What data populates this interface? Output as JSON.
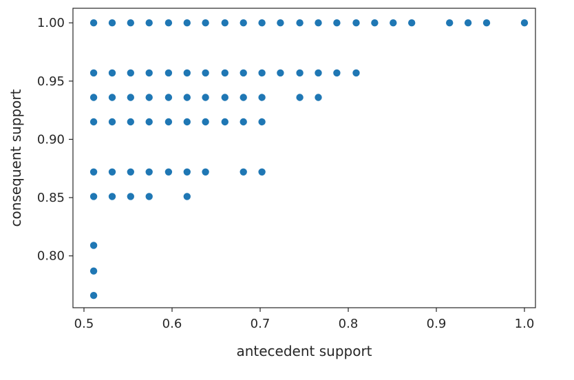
{
  "chart_data": {
    "type": "scatter",
    "title": "",
    "xlabel": "antecedent support",
    "ylabel": "consequent support",
    "xlim": [
      0.4875,
      1.0125
    ],
    "ylim": [
      0.7555,
      1.0125
    ],
    "xticks": [
      "0.5",
      "0.6",
      "0.7",
      "0.8",
      "0.9",
      "1.0"
    ],
    "yticks": [
      "0.80",
      "0.85",
      "0.90",
      "0.95",
      "1.00"
    ],
    "grid": false,
    "marker_color": "#1f77b4",
    "series": [
      {
        "points": [
          [
            0.511,
            1.0
          ],
          [
            0.532,
            1.0
          ],
          [
            0.553,
            1.0
          ],
          [
            0.574,
            1.0
          ],
          [
            0.596,
            1.0
          ],
          [
            0.617,
            1.0
          ],
          [
            0.638,
            1.0
          ],
          [
            0.66,
            1.0
          ],
          [
            0.681,
            1.0
          ],
          [
            0.702,
            1.0
          ],
          [
            0.723,
            1.0
          ],
          [
            0.745,
            1.0
          ],
          [
            0.766,
            1.0
          ],
          [
            0.787,
            1.0
          ],
          [
            0.809,
            1.0
          ],
          [
            0.83,
            1.0
          ],
          [
            0.851,
            1.0
          ],
          [
            0.872,
            1.0
          ],
          [
            0.915,
            1.0
          ],
          [
            0.936,
            1.0
          ],
          [
            0.957,
            1.0
          ],
          [
            1.0,
            1.0
          ],
          [
            0.511,
            0.957
          ],
          [
            0.532,
            0.957
          ],
          [
            0.553,
            0.957
          ],
          [
            0.574,
            0.957
          ],
          [
            0.596,
            0.957
          ],
          [
            0.617,
            0.957
          ],
          [
            0.638,
            0.957
          ],
          [
            0.66,
            0.957
          ],
          [
            0.681,
            0.957
          ],
          [
            0.702,
            0.957
          ],
          [
            0.723,
            0.957
          ],
          [
            0.745,
            0.957
          ],
          [
            0.766,
            0.957
          ],
          [
            0.787,
            0.957
          ],
          [
            0.809,
            0.957
          ],
          [
            0.511,
            0.936
          ],
          [
            0.532,
            0.936
          ],
          [
            0.553,
            0.936
          ],
          [
            0.574,
            0.936
          ],
          [
            0.596,
            0.936
          ],
          [
            0.617,
            0.936
          ],
          [
            0.638,
            0.936
          ],
          [
            0.66,
            0.936
          ],
          [
            0.681,
            0.936
          ],
          [
            0.702,
            0.936
          ],
          [
            0.745,
            0.936
          ],
          [
            0.766,
            0.936
          ],
          [
            0.511,
            0.915
          ],
          [
            0.532,
            0.915
          ],
          [
            0.553,
            0.915
          ],
          [
            0.574,
            0.915
          ],
          [
            0.596,
            0.915
          ],
          [
            0.617,
            0.915
          ],
          [
            0.638,
            0.915
          ],
          [
            0.66,
            0.915
          ],
          [
            0.681,
            0.915
          ],
          [
            0.702,
            0.915
          ],
          [
            0.511,
            0.872
          ],
          [
            0.532,
            0.872
          ],
          [
            0.553,
            0.872
          ],
          [
            0.574,
            0.872
          ],
          [
            0.596,
            0.872
          ],
          [
            0.617,
            0.872
          ],
          [
            0.638,
            0.872
          ],
          [
            0.681,
            0.872
          ],
          [
            0.702,
            0.872
          ],
          [
            0.511,
            0.851
          ],
          [
            0.532,
            0.851
          ],
          [
            0.553,
            0.851
          ],
          [
            0.574,
            0.851
          ],
          [
            0.617,
            0.851
          ],
          [
            0.511,
            0.809
          ],
          [
            0.511,
            0.787
          ],
          [
            0.511,
            0.766
          ]
        ]
      }
    ]
  }
}
